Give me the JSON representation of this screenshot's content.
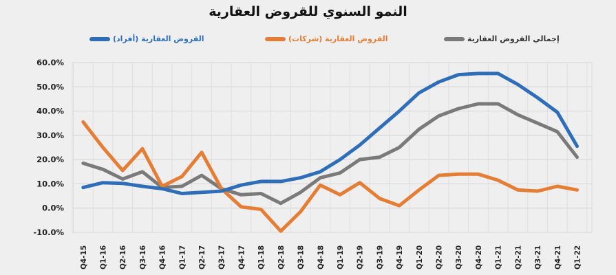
{
  "chart_data": {
    "type": "line",
    "title": "النمو السنوي للقروض العقارية",
    "xlabel": "",
    "ylabel": "",
    "ylim": [
      -10,
      60
    ],
    "y_ticks": [
      "-10.0%",
      "0.0%",
      "10.0%",
      "20.0%",
      "30.0%",
      "40.0%",
      "50.0%",
      "60.0%"
    ],
    "grid": true,
    "legend_position": "top",
    "categories": [
      "Q4-15",
      "Q1-16",
      "Q2-16",
      "Q3-16",
      "Q4-16",
      "Q1-17",
      "Q2-17",
      "Q3-17",
      "Q4-17",
      "Q1-18",
      "Q2-18",
      "Q3-18",
      "Q4-18",
      "Q1-19",
      "Q2-19",
      "Q3-19",
      "Q4-19",
      "Q1-20",
      "Q2-20",
      "Q3-20",
      "Q4-20",
      "Q1-21",
      "Q2-21",
      "Q3-21",
      "Q4-21",
      "Q1-22"
    ],
    "series": [
      {
        "name": "القروض العقارية (أفراد)",
        "color": "#2e6db8",
        "values": [
          8.5,
          10.5,
          10.2,
          9.0,
          8.0,
          6.0,
          6.5,
          7.0,
          9.5,
          11.0,
          11.0,
          12.5,
          15.0,
          20.0,
          26.0,
          33.0,
          40.0,
          47.5,
          52.0,
          55.0,
          55.5,
          55.5,
          51.0,
          45.5,
          39.5,
          25.5
        ]
      },
      {
        "name": "القروض العقارية (شركات)",
        "color": "#e57d34",
        "values": [
          35.5,
          25.0,
          15.5,
          24.5,
          9.0,
          13.0,
          23.0,
          8.0,
          0.5,
          -0.5,
          -9.5,
          -1.5,
          9.5,
          5.5,
          10.5,
          4.0,
          1.0,
          7.5,
          13.5,
          14.0,
          14.0,
          11.5,
          7.5,
          7.0,
          9.0,
          7.5
        ]
      },
      {
        "name": "إجمالي القروض العقارية",
        "color": "#7a7a7a",
        "values": [
          18.5,
          16.0,
          12.0,
          15.0,
          8.5,
          9.0,
          13.5,
          8.0,
          5.5,
          6.0,
          2.0,
          6.5,
          12.5,
          14.5,
          20.0,
          21.0,
          25.0,
          32.5,
          38.0,
          41.0,
          43.0,
          43.0,
          38.5,
          35.0,
          31.5,
          21.0
        ]
      }
    ]
  },
  "legend": {
    "individuals": "القروض العقارية (أفراد)",
    "corporate": "القروض العقارية (شركات)",
    "total": "إجمالي القروض العقارية"
  }
}
